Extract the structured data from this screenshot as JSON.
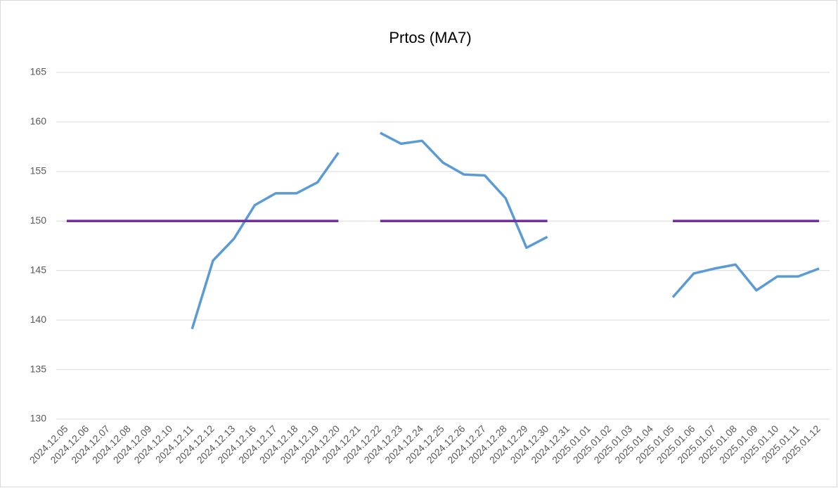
{
  "chart_data": {
    "type": "line",
    "title": "Prtos (MA7)",
    "categories": [
      "2024.12.05",
      "2024.12.06",
      "2024.12.07",
      "2024.12.08",
      "2024.12.09",
      "2024.12.10",
      "2024.12.11",
      "2024.12.12",
      "2024.12.13",
      "2024.12.16",
      "2024.12.17",
      "2024.12.18",
      "2024.12.19",
      "2024.12.20",
      "2024.12.21",
      "2024.12.22",
      "2024.12.23",
      "2024.12.24",
      "2024.12.25",
      "2024.12.26",
      "2024.12.27",
      "2024.12.28",
      "2024.12.29",
      "2024.12.30",
      "2024.12.31",
      "2025.01.01",
      "2025.01.02",
      "2025.01.03",
      "2025.01.04",
      "2025.01.05",
      "2025.01.06",
      "2025.01.07",
      "2025.01.08",
      "2025.01.09",
      "2025.01.10",
      "2025.01.11",
      "2025.01.12"
    ],
    "series": [
      {
        "color": "#5b9bd5",
        "values": [
          null,
          null,
          null,
          null,
          null,
          null,
          139.1,
          146.0,
          148.2,
          151.6,
          152.8,
          152.8,
          153.9,
          156.9,
          null,
          158.9,
          157.8,
          158.1,
          155.9,
          154.7,
          154.6,
          152.3,
          147.3,
          148.4,
          null,
          null,
          null,
          null,
          null,
          142.3,
          144.7,
          145.2,
          145.6,
          143.0,
          144.4,
          144.4,
          145.2
        ]
      },
      {
        "color": "#7030a0",
        "values": [
          150,
          150,
          150,
          150,
          150,
          150,
          150,
          150,
          150,
          150,
          150,
          150,
          150,
          150,
          null,
          150,
          150,
          150,
          150,
          150,
          150,
          150,
          150,
          150,
          null,
          null,
          null,
          null,
          null,
          150,
          150,
          150,
          150,
          150,
          150,
          150,
          150
        ]
      }
    ],
    "ylim": [
      130,
      165
    ],
    "yticks": [
      130,
      135,
      140,
      145,
      150,
      155,
      160,
      165
    ],
    "grid": true
  }
}
